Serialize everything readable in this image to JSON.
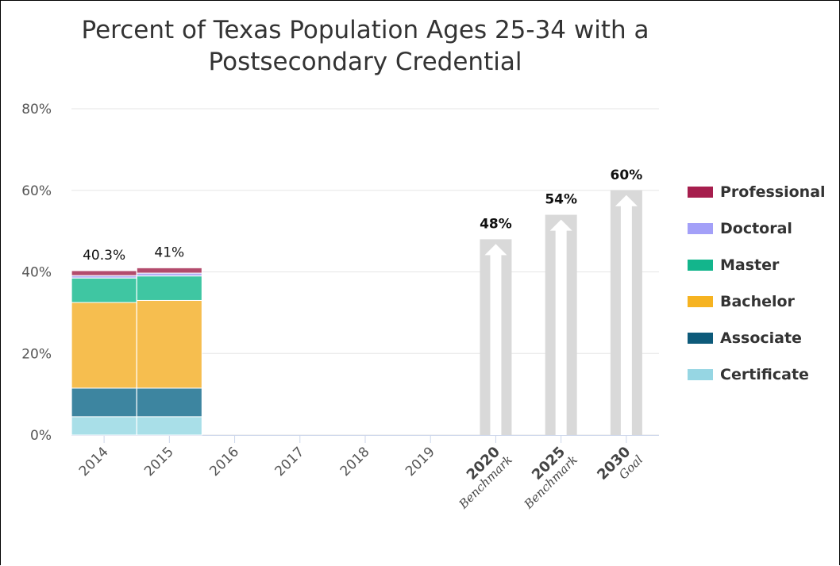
{
  "chart_data": {
    "type": "bar",
    "title": "Percent of Texas Population Ages 25-34 with a Postsecondary Credential",
    "title_lines": [
      "Percent of Texas Population Ages 25-34 with a",
      "Postsecondary Credential"
    ],
    "xlabel": "",
    "ylabel": "",
    "ylim": [
      0,
      80
    ],
    "y_ticks": [
      "0%",
      "20%",
      "40%",
      "60%",
      "80%"
    ],
    "y_tick_values": [
      0,
      20,
      40,
      60,
      80
    ],
    "grid": true,
    "legend_position": "right",
    "categories": [
      {
        "label": "2014",
        "sub": ""
      },
      {
        "label": "2015",
        "sub": ""
      },
      {
        "label": "2016",
        "sub": ""
      },
      {
        "label": "2017",
        "sub": ""
      },
      {
        "label": "2018",
        "sub": ""
      },
      {
        "label": "2019",
        "sub": ""
      },
      {
        "label": "2020",
        "sub": "Benchmark"
      },
      {
        "label": "2025",
        "sub": "Benchmark"
      },
      {
        "label": "2030",
        "sub": "Goal"
      }
    ],
    "series": [
      {
        "name": "Certificate",
        "color": "#a9dfe8",
        "values": [
          4.5,
          4.5,
          null,
          null,
          null,
          null,
          null,
          null,
          null
        ]
      },
      {
        "name": "Associate",
        "color": "#3d85a0",
        "values": [
          7,
          7,
          null,
          null,
          null,
          null,
          null,
          null,
          null
        ]
      },
      {
        "name": "Bachelor",
        "color": "#f6be4f",
        "values": [
          21,
          21.5,
          null,
          null,
          null,
          null,
          null,
          null,
          null
        ]
      },
      {
        "name": "Master",
        "color": "#3fc6a2",
        "values": [
          6,
          6,
          null,
          null,
          null,
          null,
          null,
          null,
          null
        ]
      },
      {
        "name": "Doctoral",
        "color": "#b3b0f5",
        "values": [
          0.6,
          0.7,
          null,
          null,
          null,
          null,
          null,
          null,
          null
        ]
      },
      {
        "name": "Professional",
        "color": "#b34b6c",
        "values": [
          1.2,
          1.3,
          null,
          null,
          null,
          null,
          null,
          null,
          null
        ]
      }
    ],
    "targets": [
      {
        "category": "2020",
        "value": 48,
        "label": "48%"
      },
      {
        "category": "2025",
        "value": 54,
        "label": "54%"
      },
      {
        "category": "2030",
        "value": 60,
        "label": "60%"
      }
    ],
    "target_color": "#d9d9d9",
    "total_labels": [
      {
        "category": "2014",
        "value": 40.3,
        "label": "40.3%"
      },
      {
        "category": "2015",
        "value": 41,
        "label": "41%"
      }
    ],
    "legend": [
      {
        "name": "Professional",
        "color": "#a61e4d"
      },
      {
        "name": "Doctoral",
        "color": "#a3a0f8"
      },
      {
        "name": "Master",
        "color": "#13b58c"
      },
      {
        "name": "Bachelor",
        "color": "#f6b321"
      },
      {
        "name": "Associate",
        "color": "#0d5a7a"
      },
      {
        "name": "Certificate",
        "color": "#96d6e3"
      }
    ]
  }
}
